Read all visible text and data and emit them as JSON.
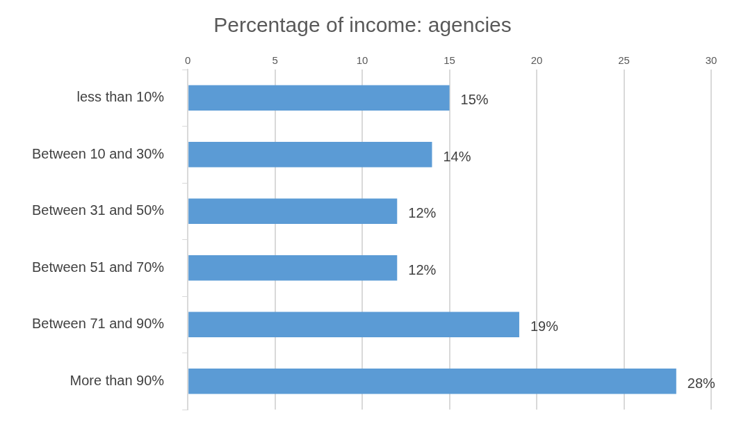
{
  "chart_data": {
    "type": "bar",
    "orientation": "horizontal",
    "title": "Percentage of income: agencies",
    "categories": [
      "less than 10%",
      "Between 10 and 30%",
      "Between 31 and 50%",
      "Between 51 and 70%",
      "Between 71 and 90%",
      "More than 90%"
    ],
    "values": [
      15,
      14,
      12,
      12,
      19,
      28
    ],
    "value_labels": [
      "15%",
      "14%",
      "12%",
      "12%",
      "19%",
      "28%"
    ],
    "color": "#5b9bd5",
    "xlim": [
      0,
      30
    ],
    "xticks": [
      0,
      5,
      10,
      15,
      20,
      25,
      30
    ],
    "grid": "x",
    "legend": false
  }
}
